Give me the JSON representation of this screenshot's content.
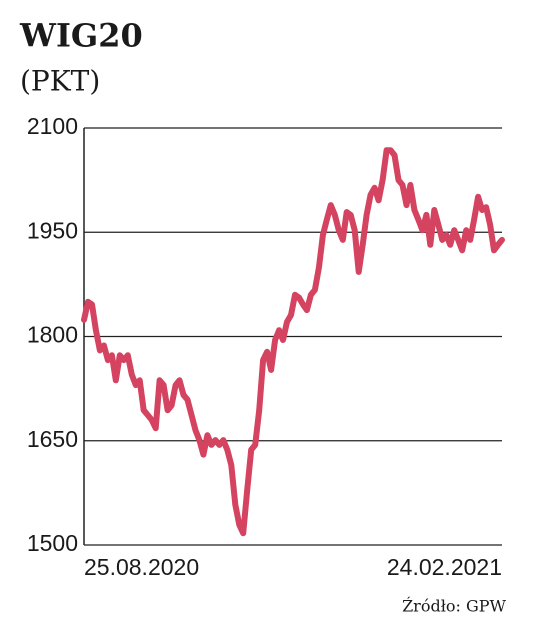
{
  "chart_data": {
    "type": "line",
    "title": "WIG20",
    "subtitle": "(PKT)",
    "source": "Źródło: GPW",
    "categories": [
      "25.08.2020",
      null,
      null,
      null,
      null,
      null,
      null,
      null,
      null,
      null,
      null,
      null,
      null,
      null,
      null,
      null,
      null,
      null,
      null,
      null,
      null,
      null,
      null,
      null,
      null,
      null,
      null,
      null,
      null,
      null,
      null,
      null,
      null,
      null,
      null,
      null,
      null,
      null,
      null,
      null,
      null,
      null,
      null,
      null,
      null,
      null,
      null,
      null,
      null,
      null,
      null,
      null,
      null,
      null,
      null,
      null,
      null,
      null,
      null,
      null,
      null,
      null,
      null,
      null,
      null,
      null,
      null,
      null,
      null,
      null,
      null,
      null,
      null,
      null,
      null,
      null,
      null,
      null,
      null,
      null,
      null,
      null,
      null,
      null,
      null,
      null,
      null,
      null,
      null,
      null,
      null,
      null,
      null,
      null,
      null,
      null,
      null,
      null,
      null,
      null,
      null,
      null,
      null,
      null,
      null,
      "24.02.2021"
    ],
    "series": [
      {
        "name": "WIG20",
        "color": "#d4435f",
        "values": [
          1824,
          1850,
          1846,
          1809,
          1780,
          1787,
          1766,
          1773,
          1737,
          1773,
          1766,
          1773,
          1745,
          1730,
          1737,
          1694,
          1687,
          1680,
          1668,
          1737,
          1730,
          1694,
          1701,
          1730,
          1737,
          1716,
          1709,
          1687,
          1665,
          1651,
          1630,
          1658,
          1644,
          1651,
          1644,
          1651,
          1637,
          1615,
          1558,
          1529,
          1517,
          1579,
          1637,
          1644,
          1694,
          1766,
          1778,
          1752,
          1795,
          1809,
          1795,
          1821,
          1831,
          1860,
          1856,
          1846,
          1838,
          1860,
          1867,
          1899,
          1946,
          1968,
          1989,
          1975,
          1953,
          1939,
          1979,
          1975,
          1953,
          1893,
          1932,
          1975,
          2004,
          2014,
          1996,
          2025,
          2068,
          2068,
          2061,
          2025,
          2018,
          1989,
          2018,
          1982,
          1968,
          1953,
          1975,
          1932,
          1982,
          1961,
          1939,
          1946,
          1932,
          1953,
          1939,
          1924,
          1953,
          1939,
          1968,
          2001,
          1982,
          1986,
          1961,
          1924,
          1932,
          1939
        ]
      }
    ],
    "ylim": [
      1500,
      2100
    ],
    "yticks": [
      1500,
      1650,
      1800,
      1950,
      2100
    ],
    "grid": true
  }
}
